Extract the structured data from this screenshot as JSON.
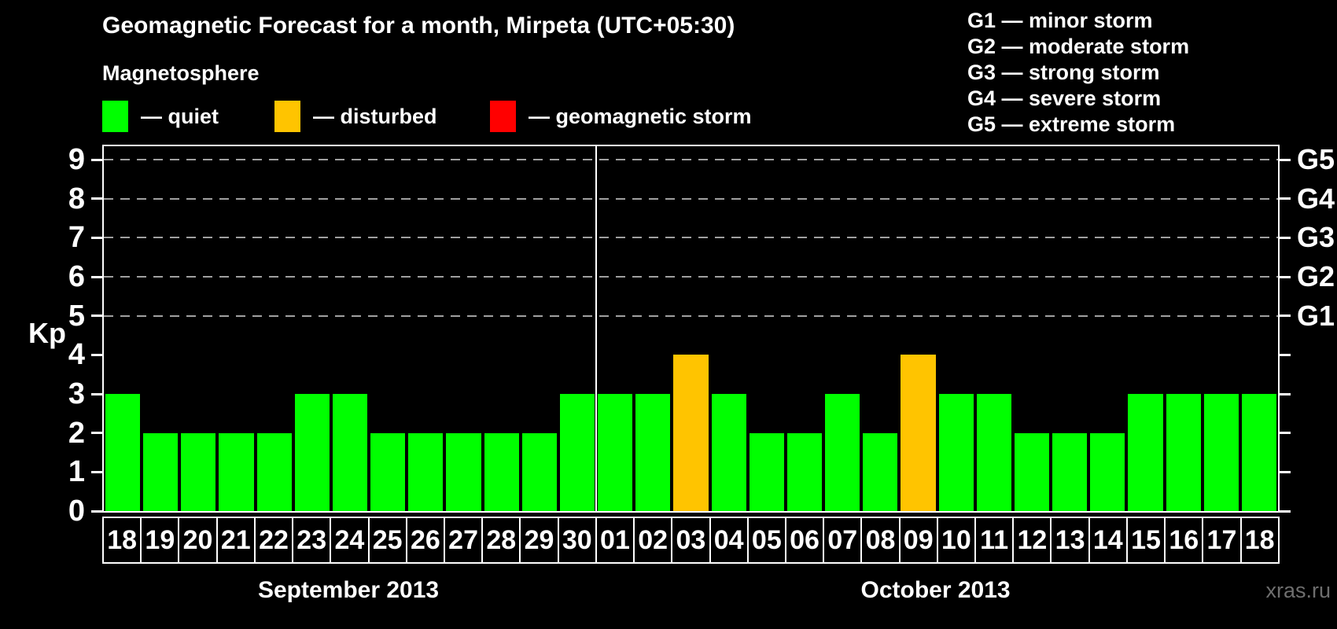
{
  "title": "Geomagnetic Forecast for a month, Mirpeta (UTC+05:30)",
  "magnetosphere": {
    "heading": "Magnetosphere",
    "items": [
      {
        "name": "quiet",
        "label": "— quiet",
        "color": "#00ff00"
      },
      {
        "name": "disturbed",
        "label": "— disturbed",
        "color": "#ffc400"
      },
      {
        "name": "storm",
        "label": "— geomagnetic storm",
        "color": "#ff0000"
      }
    ]
  },
  "storm_levels": [
    {
      "code": "G1",
      "label": "G1 — minor storm",
      "kp": 5
    },
    {
      "code": "G2",
      "label": "G2 — moderate storm",
      "kp": 6
    },
    {
      "code": "G3",
      "label": "G3 — strong storm",
      "kp": 7
    },
    {
      "code": "G4",
      "label": "G4 — severe storm",
      "kp": 8
    },
    {
      "code": "G5",
      "label": "G5 — extreme storm",
      "kp": 9
    }
  ],
  "watermark": "xras.ru",
  "chart_data": {
    "type": "bar",
    "title": "Geomagnetic Forecast for a month, Mirpeta (UTC+05:30)",
    "xlabel": "",
    "ylabel": "Kp",
    "ylim": [
      0,
      9
    ],
    "yticks": [
      0,
      1,
      2,
      3,
      4,
      5,
      6,
      7,
      8,
      9
    ],
    "gridlines_at_kp": [
      5,
      6,
      7,
      8,
      9
    ],
    "grid_style": "dashed horizontal gray lines at storm-level thresholds only",
    "legend_position": "top-left",
    "right_axis": [
      {
        "kp": 5,
        "label": "G1"
      },
      {
        "kp": 6,
        "label": "G2"
      },
      {
        "kp": 7,
        "label": "G3"
      },
      {
        "kp": 8,
        "label": "G4"
      },
      {
        "kp": 9,
        "label": "G5"
      }
    ],
    "status_colors": {
      "quiet": "#00ff00",
      "disturbed": "#ffc400",
      "storm": "#ff0000"
    },
    "months": [
      {
        "label": "September 2013",
        "days": [
          {
            "day": "18",
            "kp": 3,
            "status": "quiet"
          },
          {
            "day": "19",
            "kp": 2,
            "status": "quiet"
          },
          {
            "day": "20",
            "kp": 2,
            "status": "quiet"
          },
          {
            "day": "21",
            "kp": 2,
            "status": "quiet"
          },
          {
            "day": "22",
            "kp": 2,
            "status": "quiet"
          },
          {
            "day": "23",
            "kp": 3,
            "status": "quiet"
          },
          {
            "day": "24",
            "kp": 3,
            "status": "quiet"
          },
          {
            "day": "25",
            "kp": 2,
            "status": "quiet"
          },
          {
            "day": "26",
            "kp": 2,
            "status": "quiet"
          },
          {
            "day": "27",
            "kp": 2,
            "status": "quiet"
          },
          {
            "day": "28",
            "kp": 2,
            "status": "quiet"
          },
          {
            "day": "29",
            "kp": 2,
            "status": "quiet"
          },
          {
            "day": "30",
            "kp": 3,
            "status": "quiet"
          }
        ]
      },
      {
        "label": "October 2013",
        "days": [
          {
            "day": "01",
            "kp": 3,
            "status": "quiet"
          },
          {
            "day": "02",
            "kp": 3,
            "status": "quiet"
          },
          {
            "day": "03",
            "kp": 4,
            "status": "disturbed"
          },
          {
            "day": "04",
            "kp": 3,
            "status": "quiet"
          },
          {
            "day": "05",
            "kp": 2,
            "status": "quiet"
          },
          {
            "day": "06",
            "kp": 2,
            "status": "quiet"
          },
          {
            "day": "07",
            "kp": 3,
            "status": "quiet"
          },
          {
            "day": "08",
            "kp": 2,
            "status": "quiet"
          },
          {
            "day": "09",
            "kp": 4,
            "status": "disturbed"
          },
          {
            "day": "10",
            "kp": 3,
            "status": "quiet"
          },
          {
            "day": "11",
            "kp": 3,
            "status": "quiet"
          },
          {
            "day": "12",
            "kp": 2,
            "status": "quiet"
          },
          {
            "day": "13",
            "kp": 2,
            "status": "quiet"
          },
          {
            "day": "14",
            "kp": 2,
            "status": "quiet"
          },
          {
            "day": "15",
            "kp": 3,
            "status": "quiet"
          },
          {
            "day": "16",
            "kp": 3,
            "status": "quiet"
          },
          {
            "day": "17",
            "kp": 3,
            "status": "quiet"
          },
          {
            "day": "18",
            "kp": 3,
            "status": "quiet"
          }
        ]
      }
    ]
  }
}
